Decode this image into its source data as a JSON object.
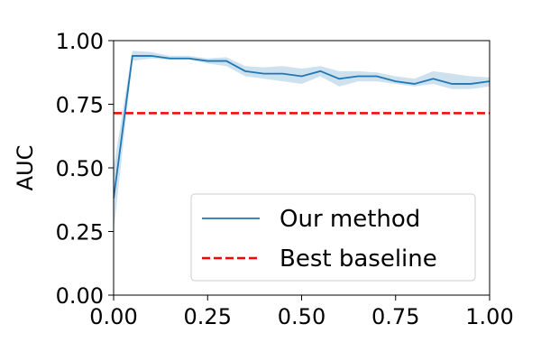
{
  "chart_data": {
    "type": "line",
    "title": "",
    "xlabel": "",
    "ylabel": "AUC",
    "xlim": [
      0.0,
      1.0
    ],
    "ylim": [
      0.0,
      1.0
    ],
    "xticks": [
      "0.00",
      "0.25",
      "0.50",
      "0.75",
      "1.00"
    ],
    "yticks": [
      "0.00",
      "0.25",
      "0.50",
      "0.75",
      "1.00"
    ],
    "grid": false,
    "legend_position": "lower-right",
    "series": [
      {
        "name": "Our method",
        "style": "solid",
        "color": "#1f77b4",
        "band_color": "#1f77b4",
        "x": [
          0.0,
          0.05,
          0.1,
          0.15,
          0.2,
          0.25,
          0.3,
          0.35,
          0.4,
          0.45,
          0.5,
          0.55,
          0.6,
          0.65,
          0.7,
          0.75,
          0.8,
          0.85,
          0.9,
          0.95,
          1.0
        ],
        "y": [
          0.38,
          0.94,
          0.94,
          0.93,
          0.93,
          0.92,
          0.92,
          0.88,
          0.87,
          0.87,
          0.86,
          0.88,
          0.85,
          0.86,
          0.86,
          0.84,
          0.83,
          0.85,
          0.83,
          0.83,
          0.84
        ],
        "y_lower": [
          0.25,
          0.92,
          0.93,
          0.925,
          0.925,
          0.91,
          0.9,
          0.86,
          0.85,
          0.84,
          0.83,
          0.86,
          0.82,
          0.84,
          0.84,
          0.83,
          0.82,
          0.83,
          0.81,
          0.81,
          0.82
        ],
        "y_upper": [
          0.5,
          0.96,
          0.955,
          0.94,
          0.94,
          0.93,
          0.935,
          0.9,
          0.895,
          0.9,
          0.89,
          0.9,
          0.88,
          0.88,
          0.875,
          0.86,
          0.85,
          0.88,
          0.87,
          0.86,
          0.855
        ]
      },
      {
        "name": "Best baseline",
        "style": "dashed",
        "color": "#ff0000",
        "x": [
          0.0,
          1.0
        ],
        "y": [
          0.715,
          0.715
        ]
      }
    ]
  }
}
